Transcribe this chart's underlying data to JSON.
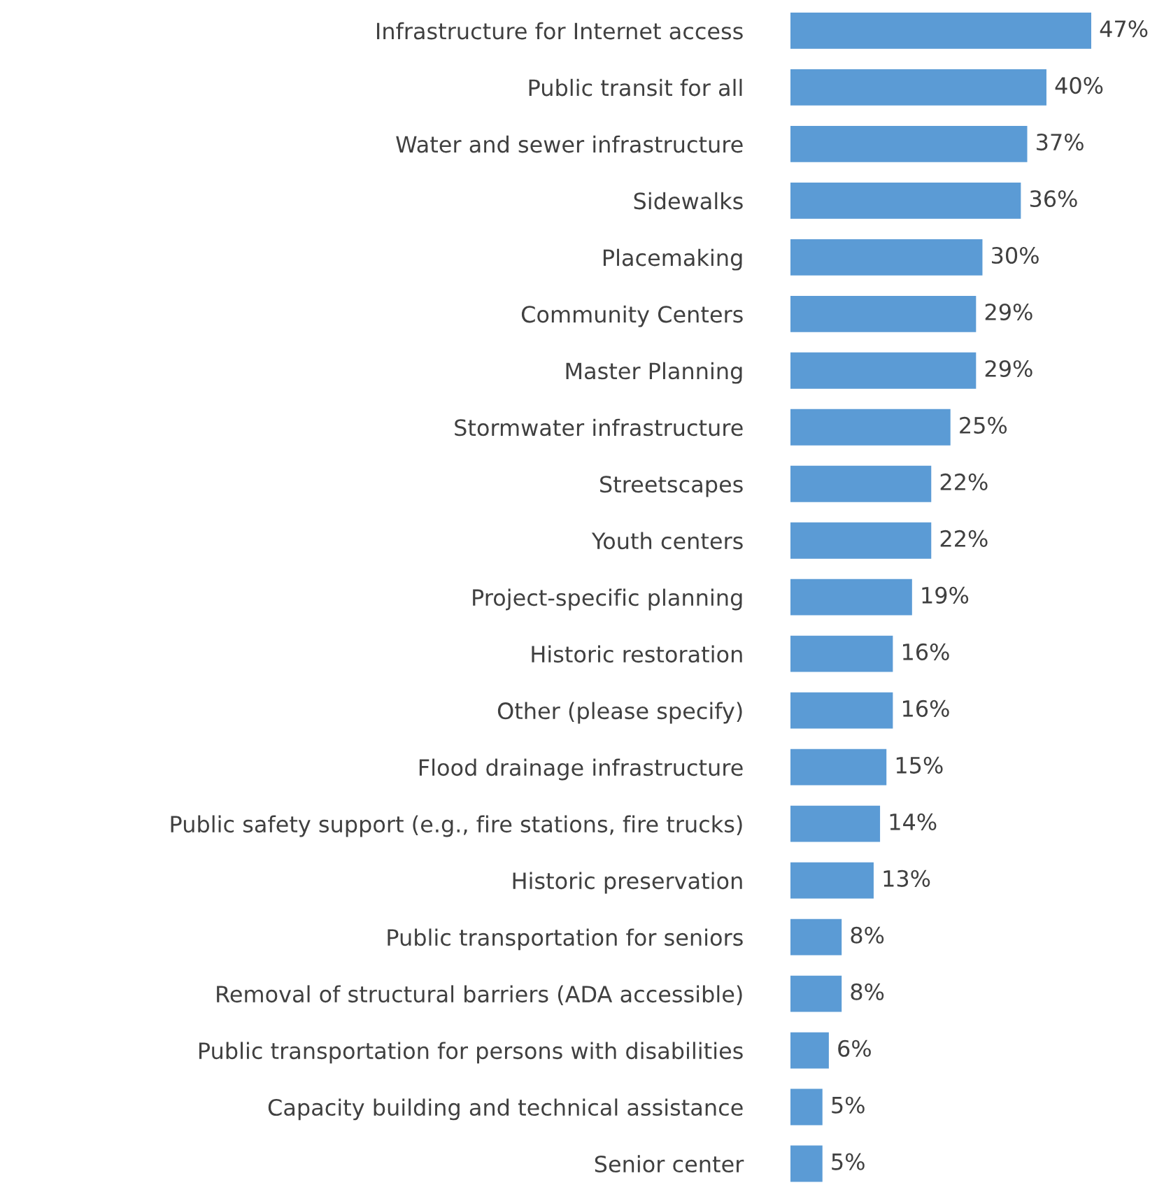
{
  "chart_data": {
    "type": "bar",
    "orientation": "horizontal",
    "categories": [
      "Infrastructure for Internet access",
      "Public transit for all",
      "Water and sewer infrastructure",
      "Sidewalks",
      "Placemaking",
      "Community Centers",
      "Master Planning",
      "Stormwater infrastructure",
      "Streetscapes",
      "Youth centers",
      "Project-specific planning",
      "Historic restoration",
      "Other (please specify)",
      "Flood drainage infrastructure",
      "Public safety support (e.g., fire stations, fire trucks)",
      "Historic preservation",
      "Public transportation for seniors",
      "Removal of structural barriers (ADA accessible)",
      "Public transportation for persons with disabilities",
      "Capacity building and technical assistance",
      "Senior center"
    ],
    "values": [
      47,
      40,
      37,
      36,
      30,
      29,
      29,
      25,
      22,
      22,
      19,
      16,
      16,
      15,
      14,
      13,
      8,
      8,
      6,
      5,
      5
    ],
    "value_labels": [
      "47%",
      "40%",
      "37%",
      "36%",
      "30%",
      "29%",
      "29%",
      "25%",
      "22%",
      "22%",
      "19%",
      "16%",
      "16%",
      "15%",
      "14%",
      "13%",
      "8%",
      "8%",
      "6%",
      "5%",
      "5%"
    ],
    "color": "#5b9bd5",
    "tick_labels": "y",
    "grid": false,
    "legend": false
  }
}
